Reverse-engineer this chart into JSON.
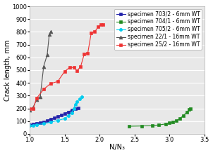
{
  "xlabel": "N/N₃",
  "ylabel": "Crack length, mm",
  "xlim": [
    1.0,
    3.5
  ],
  "ylim": [
    0,
    1000
  ],
  "yticks": [
    0,
    100,
    200,
    300,
    400,
    500,
    600,
    700,
    800,
    900,
    1000
  ],
  "xticks": [
    1.0,
    1.5,
    2.0,
    2.5,
    3.0,
    3.5
  ],
  "series": [
    {
      "label": "specimen 703/2 - 6mm WT",
      "color": "#2222aa",
      "marker": "s",
      "markersize": 3,
      "linewidth": 0.8,
      "x": [
        1.0,
        1.05,
        1.1,
        1.15,
        1.2,
        1.25,
        1.3,
        1.35,
        1.4,
        1.45,
        1.5,
        1.55,
        1.6,
        1.65,
        1.7
      ],
      "y": [
        70,
        75,
        80,
        88,
        95,
        105,
        115,
        125,
        135,
        148,
        160,
        172,
        185,
        195,
        205
      ]
    },
    {
      "label": "specimen 704/1 - 6mm WT",
      "color": "#228B22",
      "marker": "s",
      "markersize": 3,
      "linewidth": 0.8,
      "x": [
        2.42,
        2.6,
        2.75,
        2.85,
        2.95,
        3.0,
        3.05,
        3.1,
        3.15,
        3.2,
        3.25,
        3.28,
        3.3
      ],
      "y": [
        60,
        62,
        65,
        70,
        78,
        85,
        92,
        105,
        120,
        145,
        170,
        190,
        200
      ]
    },
    {
      "label": "specimen 705/2 - 6mm WT",
      "color": "#00ccee",
      "marker": "o",
      "markersize": 3,
      "linewidth": 0.8,
      "x": [
        1.0,
        1.05,
        1.1,
        1.2,
        1.3,
        1.4,
        1.5,
        1.55,
        1.6,
        1.63,
        1.65,
        1.68,
        1.72,
        1.75
      ],
      "y": [
        65,
        68,
        72,
        80,
        92,
        105,
        120,
        140,
        165,
        200,
        230,
        255,
        275,
        290
      ]
    },
    {
      "label": "specimen 22/1 - 16mm WT",
      "color": "#555555",
      "marker": "^",
      "markersize": 3.5,
      "linewidth": 0.8,
      "x": [
        1.0,
        1.05,
        1.1,
        1.15,
        1.2,
        1.25,
        1.28,
        1.3
      ],
      "y": [
        185,
        210,
        270,
        290,
        530,
        620,
        780,
        800
      ]
    },
    {
      "label": "specimen 25/2 - 16mm WT",
      "color": "#ee3333",
      "marker": "s",
      "markersize": 3,
      "linewidth": 0.8,
      "x": [
        1.0,
        1.05,
        1.1,
        1.2,
        1.3,
        1.4,
        1.5,
        1.57,
        1.63,
        1.68,
        1.73,
        1.78,
        1.83,
        1.88,
        1.93,
        1.98,
        2.02,
        2.05
      ],
      "y": [
        195,
        200,
        280,
        350,
        395,
        410,
        490,
        520,
        520,
        495,
        530,
        625,
        630,
        790,
        800,
        840,
        855,
        860
      ]
    }
  ],
  "legend_fontsize": 5.5,
  "tick_fontsize": 6,
  "label_fontsize": 7,
  "bg_color": "#e8e8e8",
  "grid_color": "#ffffff",
  "fig_bg": "#ffffff"
}
